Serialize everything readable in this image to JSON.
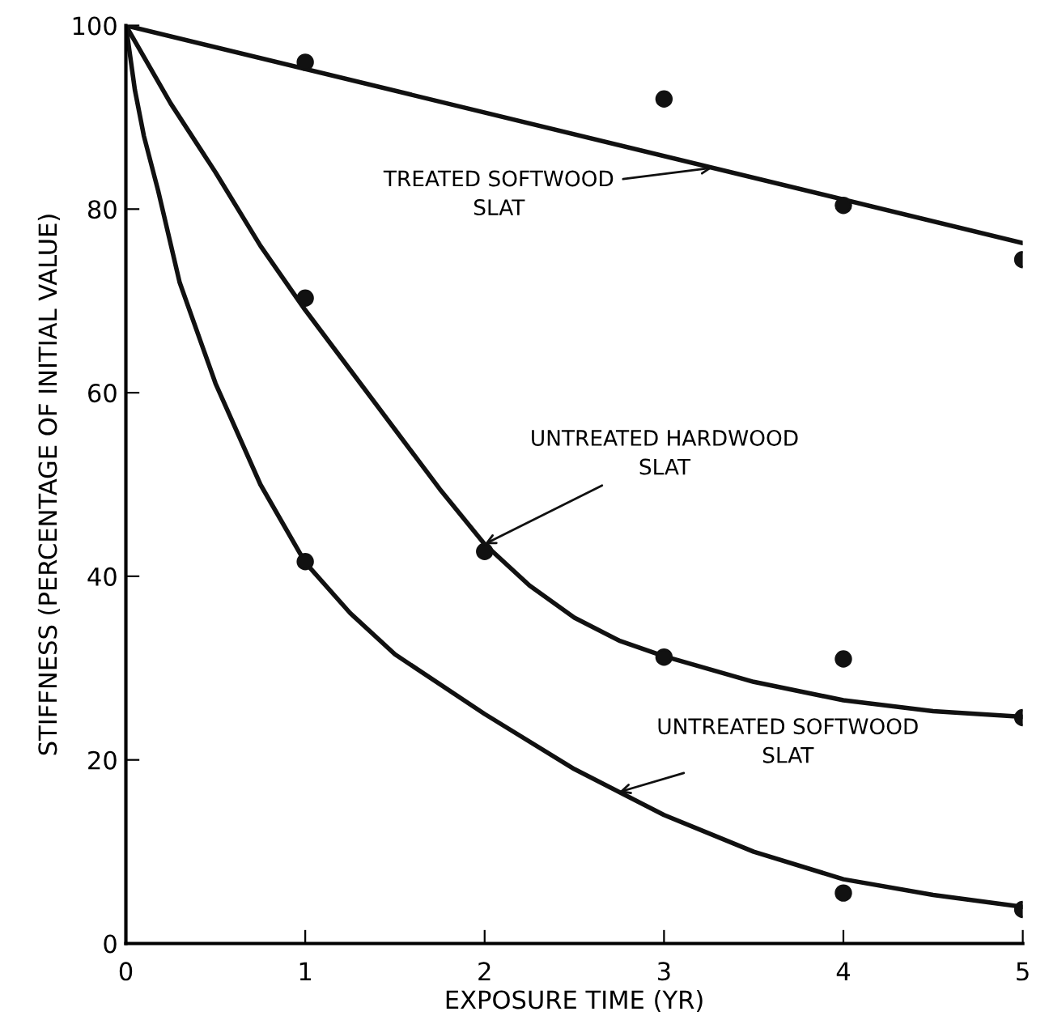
{
  "chart_data": {
    "type": "scatter",
    "xlabel": "EXPOSURE TIME (YR)",
    "ylabel": "STIFFNESS (PERCENTAGE OF INITIAL VALUE)",
    "xlim": [
      0,
      5
    ],
    "ylim": [
      0,
      100
    ],
    "xticks": [
      0,
      1,
      2,
      3,
      4,
      5
    ],
    "yticks": [
      0,
      20,
      40,
      60,
      80,
      100
    ],
    "grid": false,
    "series": [
      {
        "color": "#111111",
        "marker": "circle",
        "x": [
          1,
          3,
          4,
          5
        ],
        "values": [
          96,
          92,
          80.4,
          74.5
        ]
      },
      {
        "color": "#111111",
        "marker": "circle",
        "x": [
          1,
          2,
          3,
          4,
          5
        ],
        "values": [
          70.3,
          42.7,
          31.2,
          31,
          24.6
        ]
      },
      {
        "color": "#111111",
        "marker": "circle",
        "x": [
          1,
          4,
          5
        ],
        "values": [
          41.6,
          5.5,
          3.7
        ]
      },
      {
        "type": "line",
        "color": "#111111",
        "x": [
          0,
          5
        ],
        "values": [
          100,
          76.3
        ]
      },
      {
        "type": "line",
        "color": "#111111",
        "x": [
          0,
          0.25,
          0.5,
          0.75,
          1,
          1.25,
          1.5,
          1.75,
          2,
          2.25,
          2.5,
          2.75,
          3,
          3.5,
          4,
          4.5,
          5
        ],
        "values": [
          100,
          91.5,
          84,
          76,
          69,
          62.5,
          56,
          49.5,
          43.5,
          39,
          35.5,
          33,
          31.3,
          28.5,
          26.5,
          25.3,
          24.7
        ]
      },
      {
        "type": "line",
        "color": "#111111",
        "x": [
          0,
          0.05,
          0.1,
          0.18,
          0.3,
          0.5,
          0.75,
          1,
          1.25,
          1.5,
          2,
          2.5,
          3,
          3.5,
          4,
          4.5,
          5
        ],
        "values": [
          100,
          93,
          88,
          82,
          72,
          61,
          50,
          41.5,
          36,
          31.5,
          25,
          19,
          14,
          10,
          7,
          5.3,
          4
        ]
      }
    ],
    "annotations": [
      {
        "text": "TREATED SOFTWOOD\nSLAT",
        "x": 3.27,
        "y": 84.5
      },
      {
        "text": "UNTREATED HARDWOOD\nSLAT",
        "x": 2,
        "y": 43.5
      },
      {
        "text": "UNTREATED SOFTWOOD\nSLAT",
        "x": 2.75,
        "y": 16.5
      }
    ]
  }
}
